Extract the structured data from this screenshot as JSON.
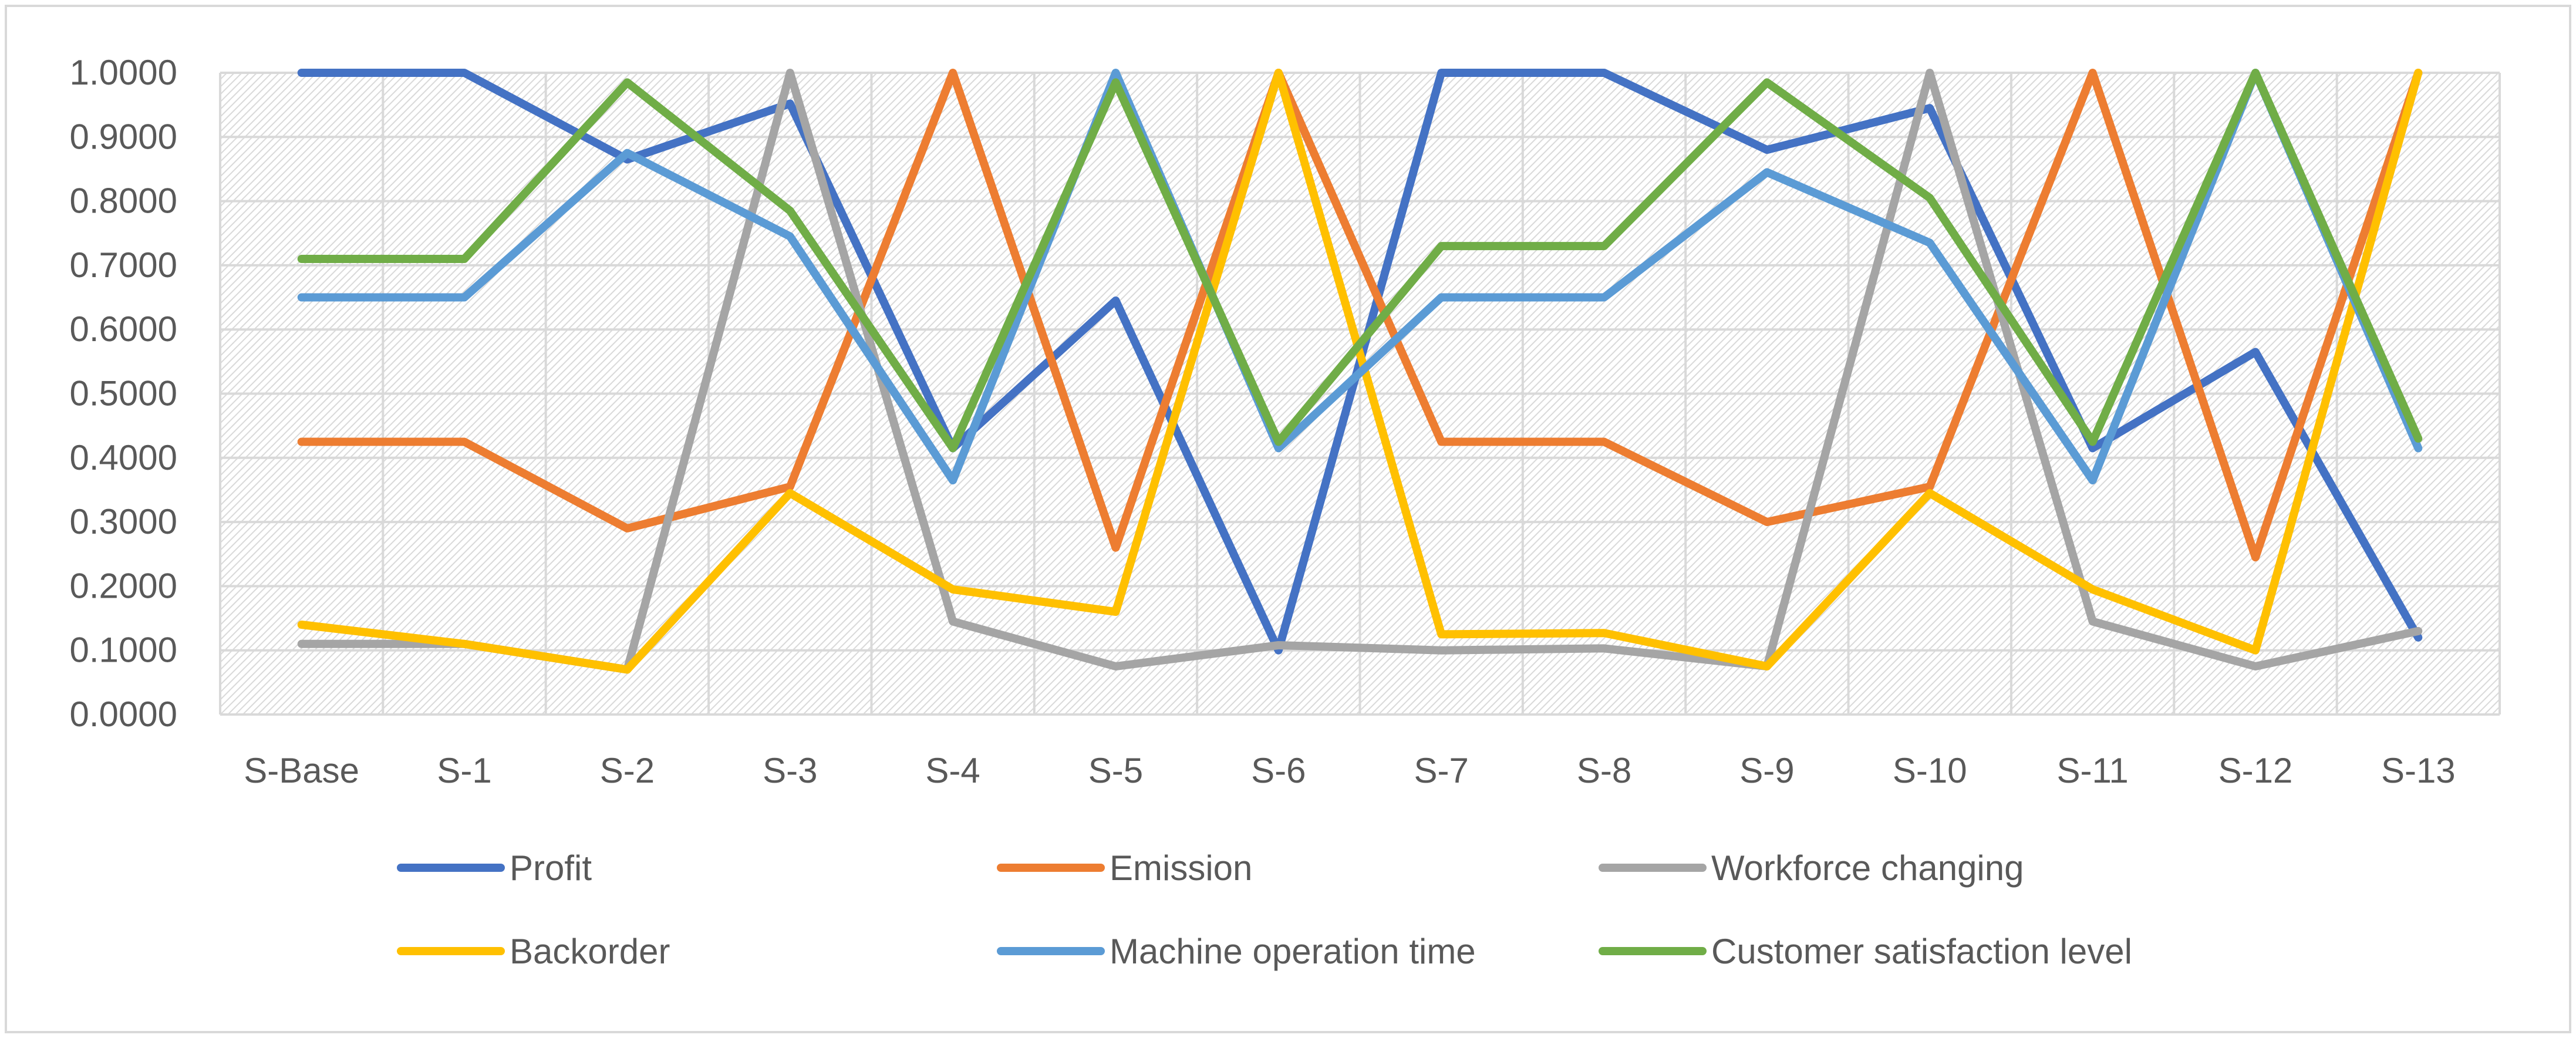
{
  "chart_data": {
    "type": "line",
    "title": "",
    "xlabel": "",
    "ylabel": "",
    "ylim": [
      0,
      1
    ],
    "ytick_step": 0.1,
    "ytick_labels": [
      "0.0000",
      "0.1000",
      "0.2000",
      "0.3000",
      "0.4000",
      "0.5000",
      "0.6000",
      "0.7000",
      "0.8000",
      "0.9000",
      "1.0000"
    ],
    "grid": true,
    "legend_position": "bottom",
    "categories": [
      "S-Base",
      "S-1",
      "S-2",
      "S-3",
      "S-4",
      "S-5",
      "S-6",
      "S-7",
      "S-8",
      "S-9",
      "S-10",
      "S-11",
      "S-12",
      "S-13"
    ],
    "series": [
      {
        "name": "Profit",
        "color": "#4472C4",
        "values": [
          1.0,
          1.0,
          0.865,
          0.952,
          0.415,
          0.645,
          0.1,
          1.0,
          1.0,
          0.88,
          0.945,
          0.415,
          0.565,
          0.12
        ]
      },
      {
        "name": "Emission",
        "color": "#ED7D31",
        "values": [
          0.425,
          0.425,
          0.29,
          0.355,
          1.0,
          0.26,
          1.0,
          0.425,
          0.425,
          0.3,
          0.355,
          1.0,
          0.245,
          1.0
        ]
      },
      {
        "name": "Workforce changing",
        "color": "#A5A5A5",
        "values": [
          0.11,
          0.11,
          0.07,
          1.0,
          0.145,
          0.075,
          0.108,
          0.1,
          0.103,
          0.075,
          1.0,
          0.145,
          0.075,
          0.13
        ]
      },
      {
        "name": "Backorder",
        "color": "#FFC000",
        "values": [
          0.14,
          0.11,
          0.07,
          0.345,
          0.195,
          0.16,
          1.0,
          0.125,
          0.127,
          0.075,
          0.345,
          0.195,
          0.1,
          1.0
        ]
      },
      {
        "name": "Machine operation time",
        "color": "#5B9BD5",
        "values": [
          0.65,
          0.65,
          0.875,
          0.745,
          0.365,
          1.0,
          0.415,
          0.65,
          0.65,
          0.845,
          0.735,
          0.365,
          1.0,
          0.415
        ]
      },
      {
        "name": "Customer satisfaction level",
        "color": "#70AD47",
        "values": [
          0.71,
          0.71,
          0.985,
          0.785,
          0.415,
          0.985,
          0.425,
          0.73,
          0.73,
          0.985,
          0.805,
          0.425,
          1.0,
          0.43
        ]
      }
    ]
  }
}
